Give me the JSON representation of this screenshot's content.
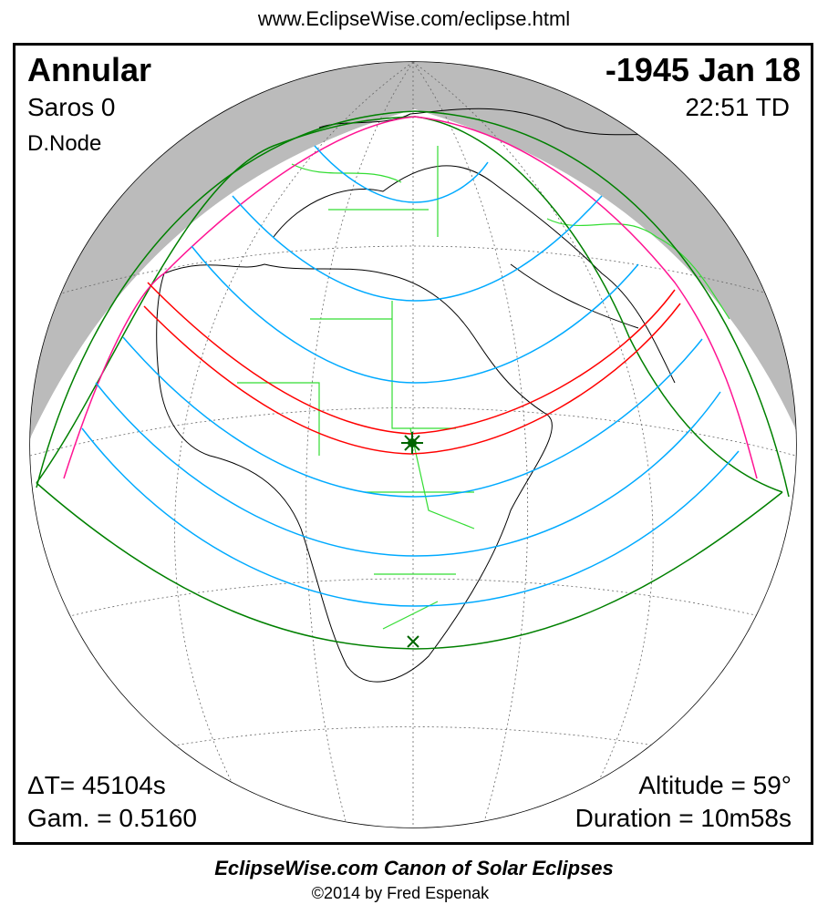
{
  "header": {
    "url": "www.EclipseWise.com/eclipse.html"
  },
  "eclipse": {
    "type": "Annular",
    "date": "-1945 Jan 18",
    "saros": "Saros   0",
    "time": "22:51 TD",
    "node": "D.Node",
    "delta_t": "ΔT=  45104s",
    "gamma": "Gam. = 0.5160",
    "altitude": "Altitude = 59°",
    "duration": "Duration = 10m58s"
  },
  "footer": {
    "canon": "EclipseWise.com Canon of Solar Eclipses",
    "copyright": "©2014 by Fred Espenak"
  },
  "colors": {
    "central_path": "#ff0000",
    "penumbral_limits": "#008000",
    "rise_set_curves": "#ff1493",
    "magnitude_lines": "#00aaff",
    "coastlines": "#000000",
    "borders": "#33dd33",
    "night": "#bbbbbb"
  },
  "markers": {
    "greatest_eclipse": "star-icon",
    "subsolar_point": "x-icon"
  }
}
